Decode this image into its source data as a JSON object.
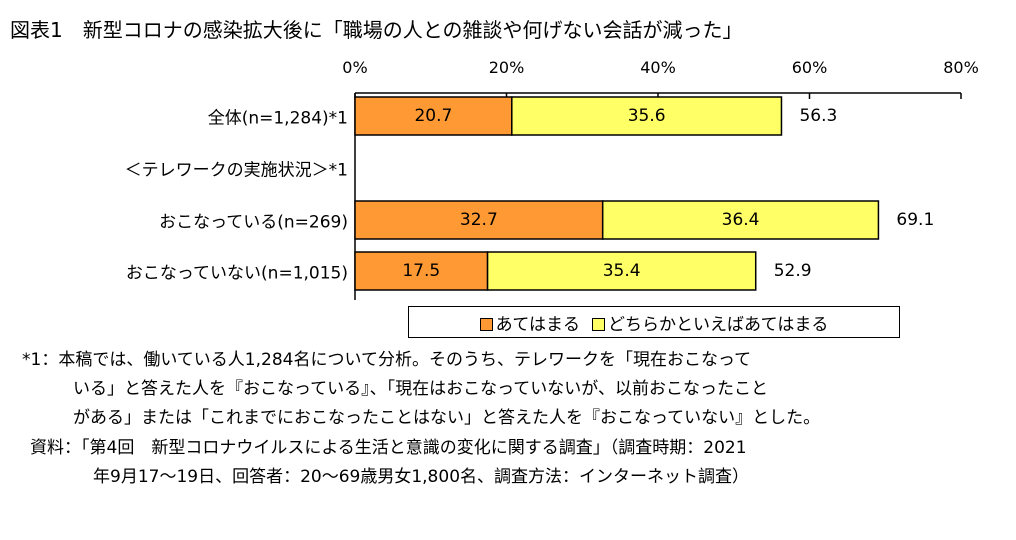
{
  "chart_data": {
    "type": "bar",
    "orientation": "horizontal",
    "stacked": true,
    "title": "図表1　新型コロナの感染拡大後に「職場の人との雑談や何げない会話が減った」",
    "xlim": [
      0,
      80
    ],
    "ticks": [
      "0%",
      "20%",
      "40%",
      "60%",
      "80%"
    ],
    "tick_values": [
      0,
      20,
      40,
      60,
      80
    ],
    "categories": [
      "全体(n=1,284)*1",
      "＜テレワークの実施状況＞*1",
      "おこなっている(n=269)",
      "おこなっていない(n=1,015)"
    ],
    "series": [
      {
        "name": "あてはまる",
        "color": "#FF9933",
        "values": [
          20.7,
          null,
          32.7,
          17.5
        ]
      },
      {
        "name": "どちらかといえばあてはまる",
        "color": "#FFFF66",
        "values": [
          35.6,
          null,
          36.4,
          35.4
        ]
      }
    ],
    "totals": [
      "56.3",
      null,
      "69.1",
      "52.9"
    ],
    "legend_position": "bottom-center"
  },
  "notes": [
    "*1：本稿では、働いている人1,284名について分析。そのうち、テレワークを「現在おこなって",
    "いる」と答えた人を『おこなっている』、「現在はおこなっていないが、以前おこなったこと",
    "がある」または「これまでにおこなったことはない」と答えた人を『おこなっていない』とした。",
    "資料：「第4回　新型コロナウイルスによる生活と意識の変化に関する調査」（調査時期：2021",
    "年9月17～19日、回答者：20～69歳男女1,800名、調査方法：インターネット調査）"
  ]
}
